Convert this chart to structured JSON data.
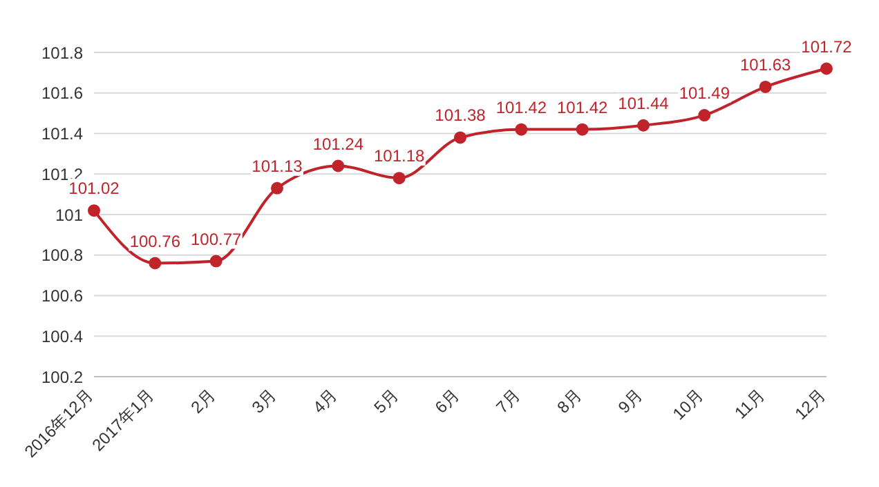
{
  "chart_data": {
    "type": "line",
    "categories": [
      "2016年12月",
      "2017年1月",
      "2月",
      "3月",
      "4月",
      "5月",
      "6月",
      "7月",
      "8月",
      "9月",
      "10月",
      "11月",
      "12月"
    ],
    "series": [
      {
        "color": "#c0232a",
        "values": [
          101.02,
          100.76,
          100.77,
          101.13,
          101.24,
          101.18,
          101.38,
          101.42,
          101.42,
          101.44,
          101.49,
          101.63,
          101.72
        ]
      }
    ],
    "ylim": [
      100.2,
      101.8
    ],
    "yticks": [
      100.2,
      100.4,
      100.6,
      100.8,
      101,
      101.2,
      101.4,
      101.6,
      101.8
    ],
    "grid": "y",
    "marker": "circle",
    "line_style": "solid",
    "data_labels": true
  }
}
